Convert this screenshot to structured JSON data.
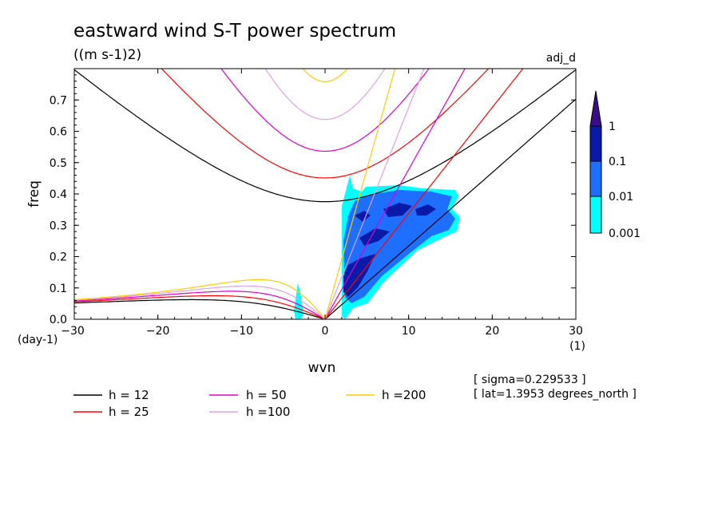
{
  "chart_data": {
    "type": "contour",
    "title": "eastward wind S-T power spectrum",
    "units": "((m s-1)2)",
    "run_label": "adj_d",
    "xlabel": "wvn",
    "ylabel": "freq",
    "x_unit": "(1)",
    "y_unit": "(day-1)",
    "xlim": [
      -30,
      30
    ],
    "ylim": [
      0,
      0.8
    ],
    "x_ticks": [
      "-30",
      "-20",
      "-10",
      "0",
      "10",
      "20",
      "30"
    ],
    "y_ticks": [
      "0.0",
      "0.1",
      "0.2",
      "0.3",
      "0.4",
      "0.5",
      "0.6",
      "0.7"
    ],
    "colorbar": {
      "levels": [
        "0.001",
        "0.01",
        "0.1",
        "1"
      ],
      "colors": [
        "#00ffff",
        "#1e6fff",
        "#0a1aa8",
        "#3a0e8a"
      ]
    },
    "dispersion_curves": [
      {
        "label": "h = 12",
        "h": 12,
        "color": "#000000"
      },
      {
        "label": "h = 25",
        "h": 25,
        "color": "#ff0000"
      },
      {
        "label": "h = 50",
        "h": 50,
        "color": "#dd00cc"
      },
      {
        "label": "h =100",
        "h": 100,
        "color": "#e2a0e2"
      },
      {
        "label": "h =200",
        "h": 200,
        "color": "#ffcc00"
      }
    ],
    "info": [
      "[ sigma=0.229533 ]",
      "[ lat=1.3953 degrees_north ]"
    ]
  }
}
